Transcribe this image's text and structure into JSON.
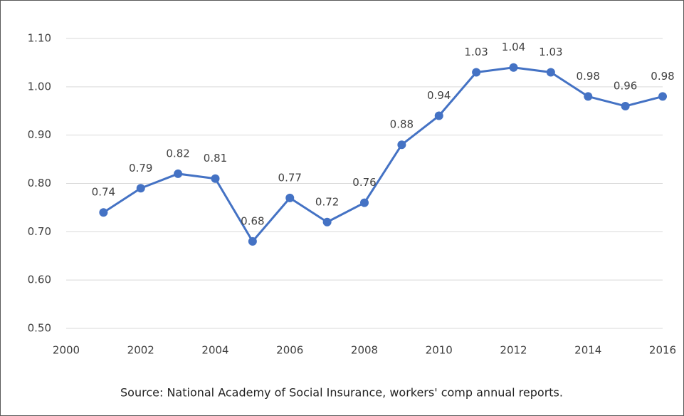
{
  "chart_data": {
    "type": "line",
    "x": [
      2001,
      2002,
      2003,
      2004,
      2005,
      2006,
      2007,
      2008,
      2009,
      2010,
      2011,
      2012,
      2013,
      2014,
      2015,
      2016
    ],
    "series": [
      {
        "color": "#4472c4",
        "values": [
          0.74,
          0.79,
          0.82,
          0.81,
          0.68,
          0.77,
          0.72,
          0.76,
          0.88,
          0.94,
          1.03,
          1.04,
          1.03,
          0.98,
          0.96,
          0.98
        ]
      }
    ],
    "xlim": [
      2000,
      2016
    ],
    "xticks": [
      2000,
      2002,
      2004,
      2006,
      2008,
      2010,
      2012,
      2014,
      2016
    ],
    "ylim": [
      0.5,
      1.1
    ],
    "yticks": [
      {
        "value": 0.5,
        "label": "0.50"
      },
      {
        "value": 0.6,
        "label": "0.60"
      },
      {
        "value": 0.7,
        "label": "0.70"
      },
      {
        "value": 0.8,
        "label": "0.80"
      },
      {
        "value": 0.9,
        "label": "0.90"
      },
      {
        "value": 1.0,
        "label": "1.00"
      },
      {
        "value": 1.1,
        "label": "1.10"
      }
    ],
    "grid": true,
    "source": "Source: National Academy of Social Insurance, workers' comp annual reports."
  }
}
